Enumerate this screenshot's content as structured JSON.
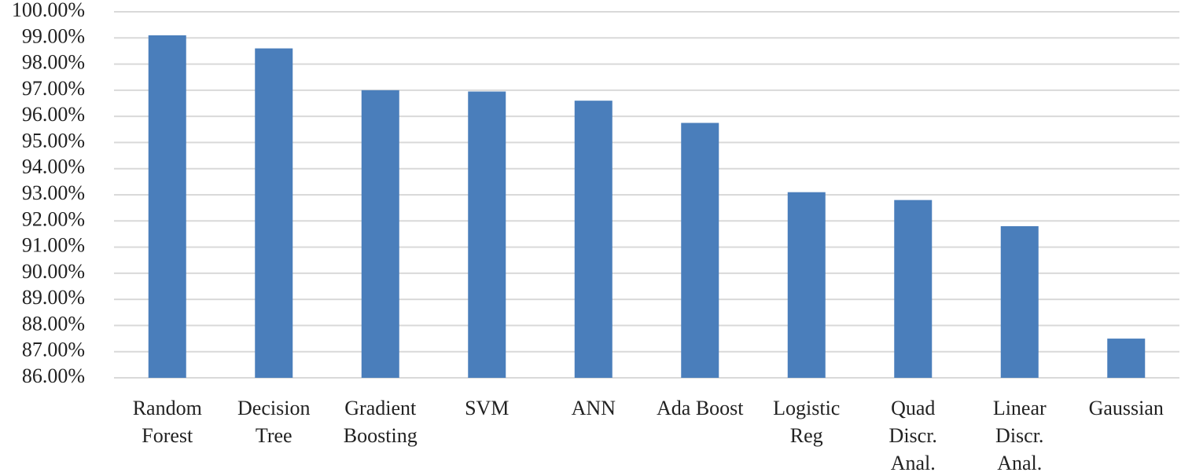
{
  "chart_data": {
    "type": "bar",
    "categories": [
      [
        "Random",
        "Forest"
      ],
      [
        "Decision",
        "Tree"
      ],
      [
        "Gradient",
        "Boosting"
      ],
      [
        "SVM"
      ],
      [
        "ANN"
      ],
      [
        "Ada Boost"
      ],
      [
        "Logistic",
        "Reg"
      ],
      [
        "Quad",
        "Discr.",
        "Anal."
      ],
      [
        "Linear",
        "Discr.",
        "Anal."
      ],
      [
        "Gaussian"
      ]
    ],
    "values": [
      99.1,
      98.6,
      97.0,
      96.95,
      96.6,
      95.75,
      93.1,
      92.8,
      91.8,
      87.5
    ],
    "color": "#4a7ebb",
    "ylim": [
      86,
      100
    ],
    "yticks": [
      {
        "value": 86,
        "label": "86.00%"
      },
      {
        "value": 87,
        "label": "87.00%"
      },
      {
        "value": 88,
        "label": "88.00%"
      },
      {
        "value": 89,
        "label": "89.00%"
      },
      {
        "value": 90,
        "label": "90.00%"
      },
      {
        "value": 91,
        "label": "91.00%"
      },
      {
        "value": 92,
        "label": "92.00%"
      },
      {
        "value": 93,
        "label": "93.00%"
      },
      {
        "value": 94,
        "label": "94.00%"
      },
      {
        "value": 95,
        "label": "95.00%"
      },
      {
        "value": 96,
        "label": "96.00%"
      },
      {
        "value": 97,
        "label": "97.00%"
      },
      {
        "value": 98,
        "label": "98.00%"
      },
      {
        "value": 99,
        "label": "99.00%"
      },
      {
        "value": 100,
        "label": "100.00%"
      }
    ],
    "grid": true
  }
}
